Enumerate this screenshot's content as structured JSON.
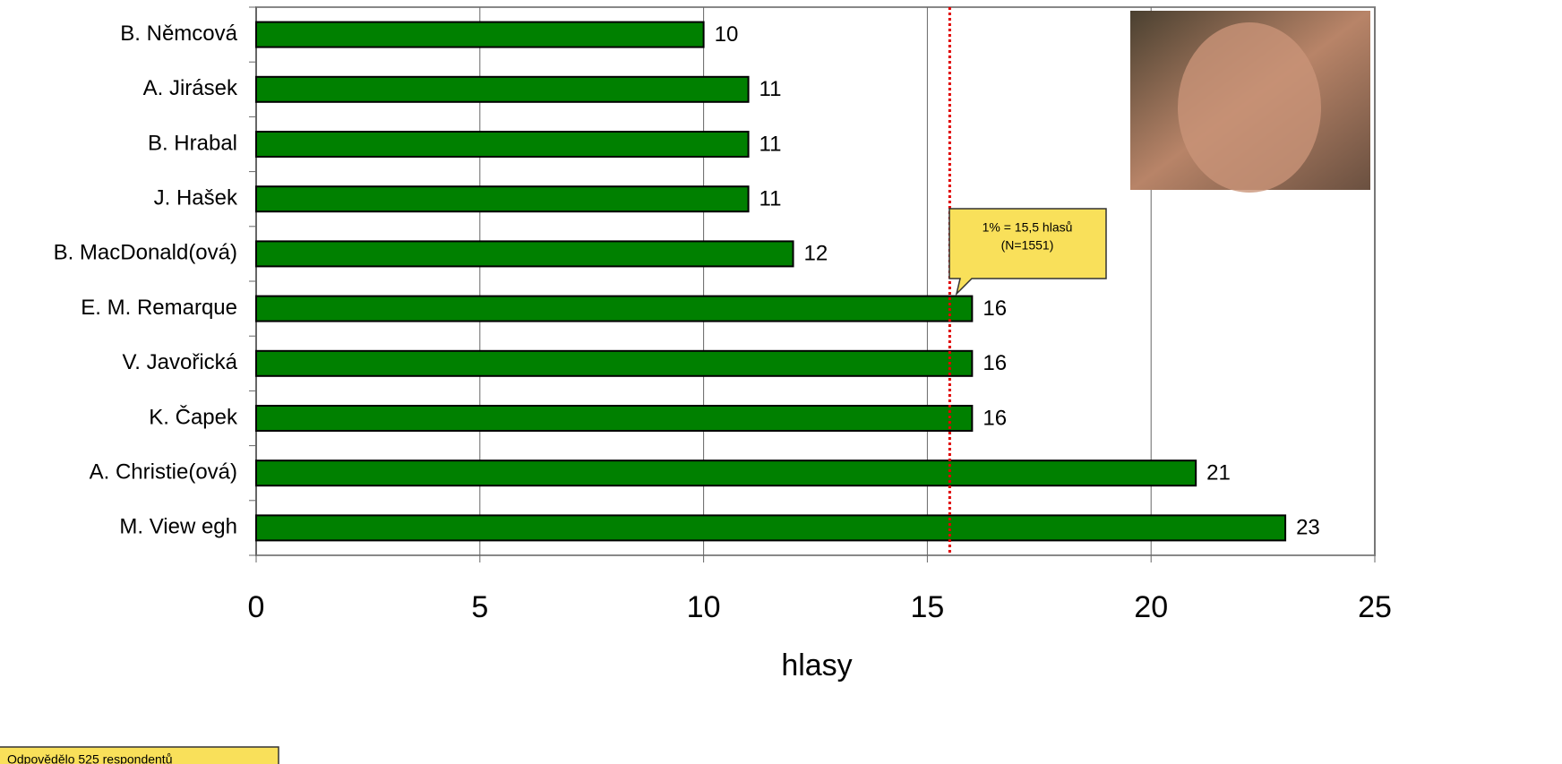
{
  "chart_data": {
    "type": "bar",
    "orientation": "horizontal",
    "categories": [
      "B. Němcová",
      "A. Jirásek",
      "B. Hrabal",
      "J. Hašek",
      "B. MacDonald(ová)",
      "E. M. Remarque",
      "V. Javořická",
      "K. Čapek",
      "A. Christie(ová)",
      "M. View egh"
    ],
    "values": [
      10,
      11,
      11,
      11,
      12,
      16,
      16,
      16,
      21,
      23
    ],
    "color": "#008000",
    "xlim": [
      0,
      25
    ],
    "xticks": [
      0,
      5,
      10,
      15,
      20,
      25
    ],
    "grid": true,
    "xlabel": "hlasy",
    "reference_value": 15.5,
    "reference_color": "#e00000",
    "annotation": [
      "1% = 15,5 hlasů",
      "(N=1551)"
    ],
    "note": "Odpovědělo 525 respondentů"
  }
}
